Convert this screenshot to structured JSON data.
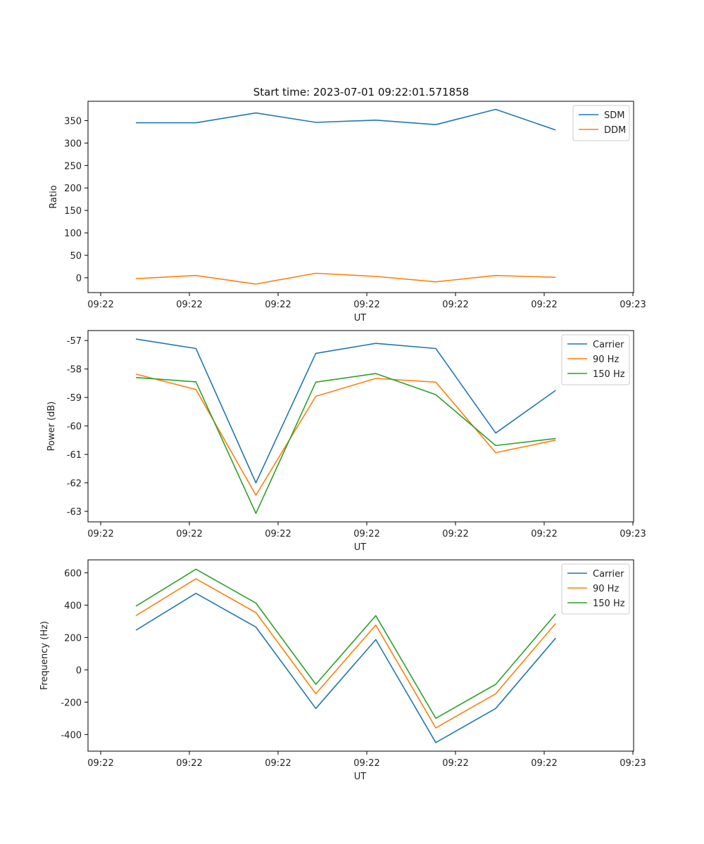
{
  "figure_title": "Start time: 2023-07-01 09:22:01.571858",
  "chart_data": [
    {
      "type": "line",
      "title": "Start time: 2023-07-01 09:22:01.571858",
      "xlabel": "UT",
      "ylabel": "Ratio",
      "x_tick_labels": [
        "09:22",
        "09:22",
        "09:22",
        "09:22",
        "09:22",
        "09:22",
        "09:23"
      ],
      "x": [
        1,
        2,
        3,
        4,
        5,
        6,
        7,
        8
      ],
      "xlim": [
        0.2,
        9.3
      ],
      "ylim": [
        -33,
        393
      ],
      "yticks": [
        0,
        50,
        100,
        150,
        200,
        250,
        300,
        350
      ],
      "legend_position": "top-right",
      "series": [
        {
          "name": "SDM",
          "color": "#1f77b4",
          "values": [
            345,
            345,
            367,
            346,
            351,
            341,
            375,
            329
          ]
        },
        {
          "name": "DDM",
          "color": "#ff7f0e",
          "values": [
            -2,
            5,
            -14,
            10,
            3,
            -9,
            5,
            1
          ]
        }
      ]
    },
    {
      "type": "line",
      "title": "",
      "xlabel": "UT",
      "ylabel": "Power (dB)",
      "x_tick_labels": [
        "09:22",
        "09:22",
        "09:22",
        "09:22",
        "09:22",
        "09:22",
        "09:23"
      ],
      "x": [
        1,
        2,
        3,
        4,
        5,
        6,
        7,
        8
      ],
      "xlim": [
        0.2,
        9.3
      ],
      "ylim": [
        -63.37,
        -56.65
      ],
      "yticks": [
        -63,
        -62,
        -61,
        -60,
        -59,
        -58,
        -57
      ],
      "legend_position": "top-right",
      "series": [
        {
          "name": "Carrier",
          "color": "#1f77b4",
          "values": [
            -56.95,
            -57.28,
            -62.0,
            -57.45,
            -57.1,
            -57.28,
            -60.25,
            -58.75
          ]
        },
        {
          "name": "90 Hz",
          "color": "#ff7f0e",
          "values": [
            -58.18,
            -58.72,
            -62.43,
            -58.96,
            -58.33,
            -58.46,
            -60.94,
            -60.5
          ]
        },
        {
          "name": "150 Hz",
          "color": "#2ca02c",
          "values": [
            -58.3,
            -58.45,
            -63.07,
            -58.46,
            -58.16,
            -58.9,
            -60.69,
            -60.44
          ]
        }
      ]
    },
    {
      "type": "line",
      "title": "",
      "xlabel": "UT",
      "ylabel": "Frequency (Hz)",
      "x_tick_labels": [
        "09:22",
        "09:22",
        "09:22",
        "09:22",
        "09:22",
        "09:22",
        "09:23"
      ],
      "x": [
        1,
        2,
        3,
        4,
        5,
        6,
        7,
        8
      ],
      "xlim": [
        0.2,
        9.3
      ],
      "ylim": [
        -503,
        680
      ],
      "yticks": [
        -400,
        -200,
        0,
        200,
        400,
        600
      ],
      "legend_position": "top-right",
      "series": [
        {
          "name": "Carrier",
          "color": "#1f77b4",
          "values": [
            245,
            473,
            264,
            -239,
            187,
            -450,
            -239,
            196
          ]
        },
        {
          "name": "90 Hz",
          "color": "#ff7f0e",
          "values": [
            335,
            563,
            354,
            -148,
            277,
            -359,
            -148,
            287
          ]
        },
        {
          "name": "150 Hz",
          "color": "#2ca02c",
          "values": [
            394,
            622,
            413,
            -90,
            335,
            -300,
            -90,
            345
          ]
        }
      ]
    }
  ]
}
